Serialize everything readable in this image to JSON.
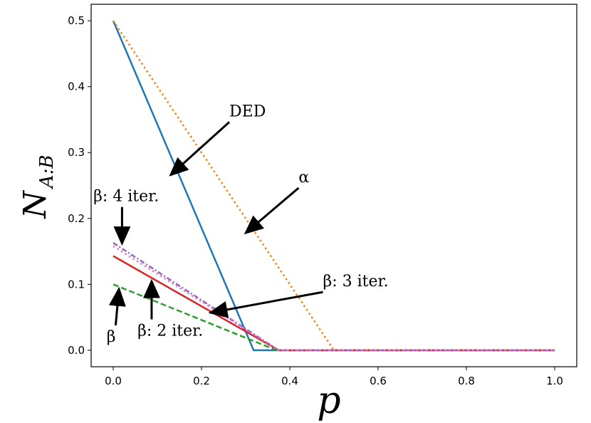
{
  "chart_data": {
    "type": "line",
    "xlabel": "p",
    "ylabel_main": "N",
    "ylabel_sub": "A:B",
    "xlim": [
      -0.05,
      1.05
    ],
    "ylim": [
      -0.025,
      0.525
    ],
    "xticks": [
      0.0,
      0.2,
      0.4,
      0.6,
      0.8,
      1.0
    ],
    "xtick_labels": [
      "0.0",
      "0.2",
      "0.4",
      "0.6",
      "0.8",
      "1.0"
    ],
    "yticks": [
      0.0,
      0.1,
      0.2,
      0.3,
      0.4,
      0.5
    ],
    "ytick_labels": [
      "0.0",
      "0.1",
      "0.2",
      "0.3",
      "0.4",
      "0.5"
    ],
    "grid": false,
    "series": [
      {
        "key": "ded",
        "color": "#1f77b4",
        "dash": "solid",
        "x": [
          0,
          0.318,
          1.0
        ],
        "y": [
          0.5,
          0.0,
          0.0
        ]
      },
      {
        "key": "alpha",
        "color": "#ff7f0e",
        "dash": "dotted",
        "x": [
          0,
          0.5,
          1.0
        ],
        "y": [
          0.5,
          0.0,
          0.0
        ]
      },
      {
        "key": "beta",
        "color": "#2ca02c",
        "dash": "dashed",
        "x": [
          0,
          0.37,
          1.0
        ],
        "y": [
          0.1,
          0.0,
          0.0
        ]
      },
      {
        "key": "beta2",
        "color": "#d62728",
        "dash": "solid",
        "x": [
          0,
          0.375,
          1.0
        ],
        "y": [
          0.143,
          0.0,
          0.0
        ]
      },
      {
        "key": "beta3",
        "color": "#9467bd",
        "dash": "dashdot",
        "x": [
          0,
          0.375,
          1.0
        ],
        "y": [
          0.163,
          0.0,
          0.0
        ]
      },
      {
        "key": "beta4",
        "color": "#e377c2",
        "dash": "dotted",
        "x": [
          0,
          0.375,
          1.0
        ],
        "y": [
          0.158,
          0.0,
          0.0
        ]
      }
    ],
    "annotations": [
      {
        "text": "DED",
        "text_x": 0.263,
        "text_y": 0.355,
        "tip_x": 0.13,
        "tip_y": 0.266
      },
      {
        "text": "α",
        "text_x": 0.42,
        "text_y": 0.255,
        "tip_x": 0.3,
        "tip_y": 0.178
      },
      {
        "text": "β: 4 iter.",
        "text_x": -0.045,
        "text_y": 0.226,
        "tip_x": 0.02,
        "tip_y": 0.162
      },
      {
        "text": "β: 3 iter.",
        "text_x": 0.475,
        "text_y": 0.097,
        "tip_x": 0.22,
        "tip_y": 0.057
      },
      {
        "text": "β",
        "text_x": -0.015,
        "text_y": 0.013,
        "tip_x": 0.013,
        "tip_y": 0.093
      },
      {
        "text": "β: 2 iter.",
        "text_x": 0.055,
        "text_y": 0.022,
        "tip_x": 0.087,
        "tip_y": 0.105
      }
    ]
  }
}
